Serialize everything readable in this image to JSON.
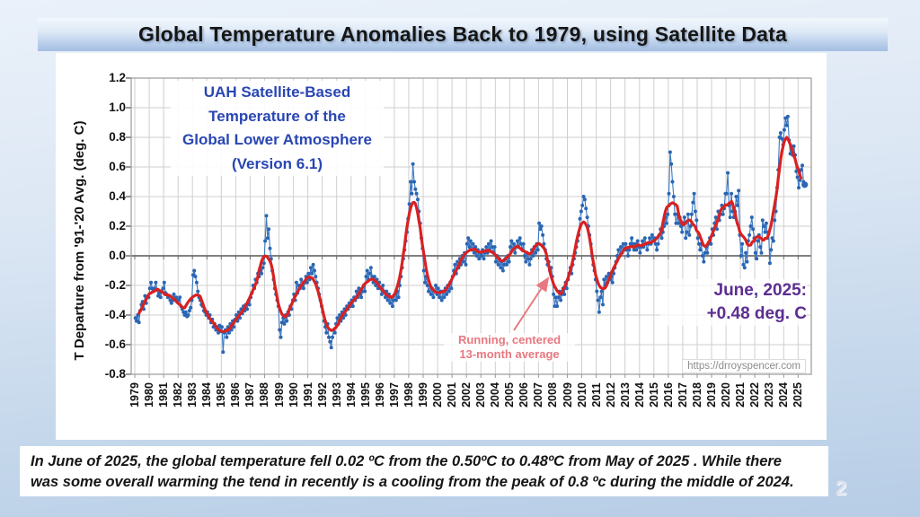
{
  "slide": {
    "title": "Global Temperature Anomalies Back to 1979, using Satellite Data",
    "page_number": "2",
    "caption": {
      "line1": "In June of 2025, the global temperature fell 0.02 ºC from the 0.50ºC to 0.48ºC from May of 2025 .  While there",
      "line2": "was some overall warming the tend in recently is a cooling from the peak of 0.8 ºc during the middle of 2024."
    }
  },
  "chart_data": {
    "type": "line",
    "title_lines": [
      "UAH Satellite-Based",
      "Temperature of the",
      "Global Lower Atmosphere",
      "(Version 6.1)"
    ],
    "ylabel": "T Departure from '91-'20 Avg. (deg. C)",
    "ylim": [
      -0.8,
      1.2
    ],
    "ytick_step": 0.2,
    "ytick_labels": [
      "1.2",
      "1.0",
      "0.8",
      "0.6",
      "0.4",
      "0.2",
      "0.0",
      "-0.2",
      "-0.4",
      "-0.6",
      "-0.8"
    ],
    "year_labels": [
      "1979",
      "1980",
      "1981",
      "1982",
      "1983",
      "1984",
      "1985",
      "1986",
      "1987",
      "1988",
      "1989",
      "1990",
      "1991",
      "1992",
      "1993",
      "1994",
      "1995",
      "1996",
      "1997",
      "1998",
      "1999",
      "2000",
      "2001",
      "2002",
      "2003",
      "2004",
      "2005",
      "2006",
      "2007",
      "2008",
      "2009",
      "2010",
      "2011",
      "2012",
      "2013",
      "2014",
      "2015",
      "2016",
      "2017",
      "2018",
      "2019",
      "2020",
      "2021",
      "2022",
      "2023",
      "2024",
      "2025"
    ],
    "grid": true,
    "colors": {
      "monthly": "#2a66b3",
      "monthly_line": "#3c78c2",
      "running_avg": "#d92121",
      "grid": "#cfcfcf",
      "zero_line": "#6e6e6e",
      "border": "#9a9a9a",
      "inner_title": "#2946b2",
      "june_annotation": "#5c2e91",
      "running_label": "#e87880",
      "url_text": "#8b8b8b"
    },
    "annotations": {
      "june": {
        "line1": "June, 2025:",
        "line2": "+0.48 deg. C"
      },
      "running": {
        "line1": "Running, centered",
        "line2": "13-month average",
        "arrow_from": [
          572,
          368
        ],
        "arrow_to": [
          610,
          310
        ]
      },
      "url": "https://drroyspencer.com"
    },
    "last_point": {
      "label": "June, 2025",
      "value": 0.48
    },
    "series": [
      {
        "name": "Monthly global lower-troposphere temperature anomaly (deg. C)",
        "style": "points+line",
        "start": "1979-01",
        "end": "2025-06",
        "values_by_year": {
          "1979": [
            -0.42,
            -0.44,
            -0.4,
            -0.45,
            -0.37,
            -0.33,
            -0.31,
            -0.36,
            -0.27,
            -0.32,
            -0.28,
            -0.28
          ],
          "1980": [
            -0.22,
            -0.18,
            -0.22,
            -0.24,
            -0.22,
            -0.18,
            -0.23,
            -0.27,
            -0.25,
            -0.28,
            -0.24,
            -0.22
          ],
          "1981": [
            -0.18,
            -0.25,
            -0.26,
            -0.28,
            -0.27,
            -0.3,
            -0.32,
            -0.3,
            -0.26,
            -0.3,
            -0.28,
            -0.3
          ],
          "1982": [
            -0.3,
            -0.28,
            -0.34,
            -0.36,
            -0.38,
            -0.4,
            -0.38,
            -0.41,
            -0.4,
            -0.37,
            -0.35,
            -0.3
          ],
          "1983": [
            -0.13,
            -0.1,
            -0.14,
            -0.18,
            -0.24,
            -0.28,
            -0.3,
            -0.33,
            -0.34,
            -0.37,
            -0.38,
            -0.4
          ],
          "1984": [
            -0.38,
            -0.42,
            -0.4,
            -0.45,
            -0.43,
            -0.48,
            -0.46,
            -0.5,
            -0.48,
            -0.52,
            -0.47,
            -0.51
          ],
          "1985": [
            -0.48,
            -0.65,
            -0.52,
            -0.5,
            -0.55,
            -0.48,
            -0.52,
            -0.46,
            -0.5,
            -0.44,
            -0.48,
            -0.43
          ],
          "1986": [
            -0.4,
            -0.44,
            -0.38,
            -0.42,
            -0.36,
            -0.39,
            -0.34,
            -0.37,
            -0.33,
            -0.36,
            -0.31,
            -0.33
          ],
          "1987": [
            -0.28,
            -0.25,
            -0.2,
            -0.22,
            -0.16,
            -0.18,
            -0.12,
            -0.14,
            -0.1,
            -0.12,
            -0.08,
            -0.05
          ],
          "1988": [
            0.1,
            0.27,
            0.12,
            0.18,
            0.05,
            -0.02,
            -0.1,
            -0.16,
            -0.22,
            -0.26,
            -0.3,
            -0.34
          ],
          "1989": [
            -0.5,
            -0.55,
            -0.45,
            -0.42,
            -0.46,
            -0.4,
            -0.44,
            -0.38,
            -0.4,
            -0.34,
            -0.36,
            -0.3
          ],
          "1990": [
            -0.26,
            -0.3,
            -0.18,
            -0.25,
            -0.2,
            -0.22,
            -0.16,
            -0.2,
            -0.22,
            -0.18,
            -0.14,
            -0.18
          ],
          "1991": [
            -0.12,
            -0.16,
            -0.08,
            -0.12,
            -0.06,
            -0.1,
            -0.14,
            -0.18,
            -0.22,
            -0.26,
            -0.3,
            -0.34
          ],
          "1992": [
            -0.38,
            -0.44,
            -0.48,
            -0.52,
            -0.46,
            -0.55,
            -0.58,
            -0.62,
            -0.55,
            -0.5,
            -0.52,
            -0.46
          ],
          "1993": [
            -0.42,
            -0.46,
            -0.4,
            -0.44,
            -0.38,
            -0.42,
            -0.36,
            -0.4,
            -0.34,
            -0.36,
            -0.32,
            -0.34
          ],
          "1994": [
            -0.3,
            -0.34,
            -0.28,
            -0.3,
            -0.24,
            -0.28,
            -0.22,
            -0.26,
            -0.28,
            -0.24,
            -0.2,
            -0.24
          ],
          "1995": [
            -0.14,
            -0.1,
            -0.16,
            -0.12,
            -0.08,
            -0.14,
            -0.18,
            -0.14,
            -0.2,
            -0.16,
            -0.22,
            -0.18
          ],
          "1996": [
            -0.22,
            -0.26,
            -0.2,
            -0.24,
            -0.28,
            -0.24,
            -0.3,
            -0.26,
            -0.32,
            -0.28,
            -0.34,
            -0.3
          ],
          "1997": [
            -0.26,
            -0.3,
            -0.24,
            -0.28,
            -0.2,
            -0.14,
            -0.08,
            -0.02,
            0.04,
            0.1,
            0.16,
            0.25
          ],
          "1998": [
            0.35,
            0.5,
            0.42,
            0.62,
            0.5,
            0.45,
            0.42,
            0.38,
            0.3,
            0.22,
            0.12,
            0.05
          ],
          "1999": [
            -0.1,
            -0.18,
            -0.14,
            -0.2,
            -0.24,
            -0.2,
            -0.26,
            -0.22,
            -0.28,
            -0.24,
            -0.2,
            -0.26
          ],
          "2000": [
            -0.22,
            -0.28,
            -0.24,
            -0.3,
            -0.24,
            -0.28,
            -0.22,
            -0.26,
            -0.2,
            -0.24,
            -0.18,
            -0.22
          ],
          "2001": [
            -0.14,
            -0.1,
            -0.06,
            -0.12,
            -0.04,
            -0.08,
            -0.02,
            -0.06,
            0.0,
            -0.04,
            0.02,
            -0.06
          ],
          "2002": [
            0.08,
            0.12,
            0.06,
            0.1,
            0.04,
            0.08,
            0.02,
            0.06,
            0.0,
            0.04,
            -0.02,
            0.02
          ],
          "2003": [
            0.0,
            0.04,
            -0.02,
            0.02,
            0.06,
            0.02,
            0.08,
            0.04,
            0.1,
            0.06,
            0.02,
            0.06
          ],
          "2004": [
            -0.04,
            0.0,
            -0.06,
            -0.02,
            -0.08,
            -0.04,
            -0.1,
            -0.06,
            -0.02,
            -0.06,
            0.0,
            -0.04
          ],
          "2005": [
            0.06,
            0.1,
            0.04,
            0.08,
            0.02,
            0.06,
            0.1,
            0.06,
            0.12,
            0.08,
            0.04,
            0.08
          ],
          "2006": [
            0.0,
            -0.04,
            0.02,
            -0.02,
            -0.06,
            -0.02,
            0.04,
            0.0,
            0.06,
            0.02,
            0.08,
            0.04
          ],
          "2007": [
            0.22,
            0.18,
            0.2,
            0.14,
            0.08,
            0.04,
            -0.02,
            -0.06,
            -0.04,
            -0.1,
            -0.08,
            -0.14
          ],
          "2008": [
            -0.26,
            -0.34,
            -0.28,
            -0.34,
            -0.28,
            -0.24,
            -0.3,
            -0.26,
            -0.22,
            -0.26,
            -0.18,
            -0.22
          ],
          "2009": [
            -0.16,
            -0.12,
            -0.08,
            -0.12,
            -0.06,
            -0.02,
            0.02,
            0.06,
            0.1,
            0.14,
            0.25,
            0.3
          ],
          "2010": [
            0.34,
            0.4,
            0.38,
            0.32,
            0.26,
            0.2,
            0.14,
            0.08,
            0.0,
            -0.06,
            -0.1,
            -0.16
          ],
          "2011": [
            -0.24,
            -0.3,
            -0.38,
            -0.28,
            -0.24,
            -0.33,
            -0.16,
            -0.2,
            -0.14,
            -0.18,
            -0.12,
            -0.16
          ],
          "2012": [
            -0.14,
            -0.18,
            -0.12,
            -0.08,
            -0.04,
            0.0,
            0.04,
            0.0,
            0.06,
            0.02,
            0.08,
            0.04
          ],
          "2013": [
            0.08,
            0.04,
            0.0,
            0.04,
            0.08,
            0.12,
            0.08,
            0.04,
            0.08,
            0.04,
            0.1,
            0.06
          ],
          "2014": [
            0.02,
            0.06,
            0.1,
            0.06,
            0.12,
            0.08,
            0.04,
            0.08,
            0.12,
            0.08,
            0.14,
            0.1
          ],
          "2015": [
            0.12,
            0.08,
            0.04,
            0.08,
            0.14,
            0.18,
            0.12,
            0.16,
            0.2,
            0.26,
            0.22,
            0.28
          ],
          "2016": [
            0.42,
            0.7,
            0.62,
            0.5,
            0.4,
            0.28,
            0.22,
            0.28,
            0.22,
            0.26,
            0.2,
            0.16
          ],
          "2017": [
            0.22,
            0.26,
            0.12,
            0.16,
            0.28,
            0.14,
            0.2,
            0.28,
            0.36,
            0.42,
            0.3,
            0.24
          ],
          "2018": [
            0.12,
            0.08,
            0.04,
            0.08,
            0.0,
            -0.04,
            0.02,
            0.06,
            0.02,
            0.08,
            0.12,
            0.08
          ],
          "2019": [
            0.18,
            0.14,
            0.22,
            0.26,
            0.18,
            0.3,
            0.24,
            0.28,
            0.34,
            0.28,
            0.32,
            0.42
          ],
          "2020": [
            0.42,
            0.56,
            0.34,
            0.26,
            0.42,
            0.3,
            0.26,
            0.3,
            0.4,
            0.34,
            0.44,
            0.14
          ],
          "2021": [
            0.0,
            0.08,
            -0.06,
            -0.08,
            0.02,
            -0.04,
            0.1,
            0.14,
            0.2,
            0.26,
            0.18,
            0.12
          ],
          "2022": [
            0.02,
            -0.02,
            0.1,
            0.14,
            0.06,
            0.02,
            0.24,
            0.2,
            0.16,
            0.22,
            0.12,
            0.16
          ],
          "2023": [
            -0.05,
            0.04,
            0.12,
            0.1,
            0.24,
            0.3,
            0.46,
            0.58,
            0.8,
            0.83,
            0.79,
            0.75
          ],
          "2024": [
            0.85,
            0.93,
            0.88,
            0.94,
            0.78,
            0.69,
            0.74,
            0.68,
            0.74,
            0.68,
            0.57,
            0.53
          ],
          "2025": [
            0.46,
            0.51,
            0.58,
            0.61,
            0.5,
            0.48
          ]
        }
      },
      {
        "name": "Running, centered 13-month average",
        "style": "thick-line",
        "derived_from": "monthly",
        "window_months": 13
      }
    ]
  }
}
